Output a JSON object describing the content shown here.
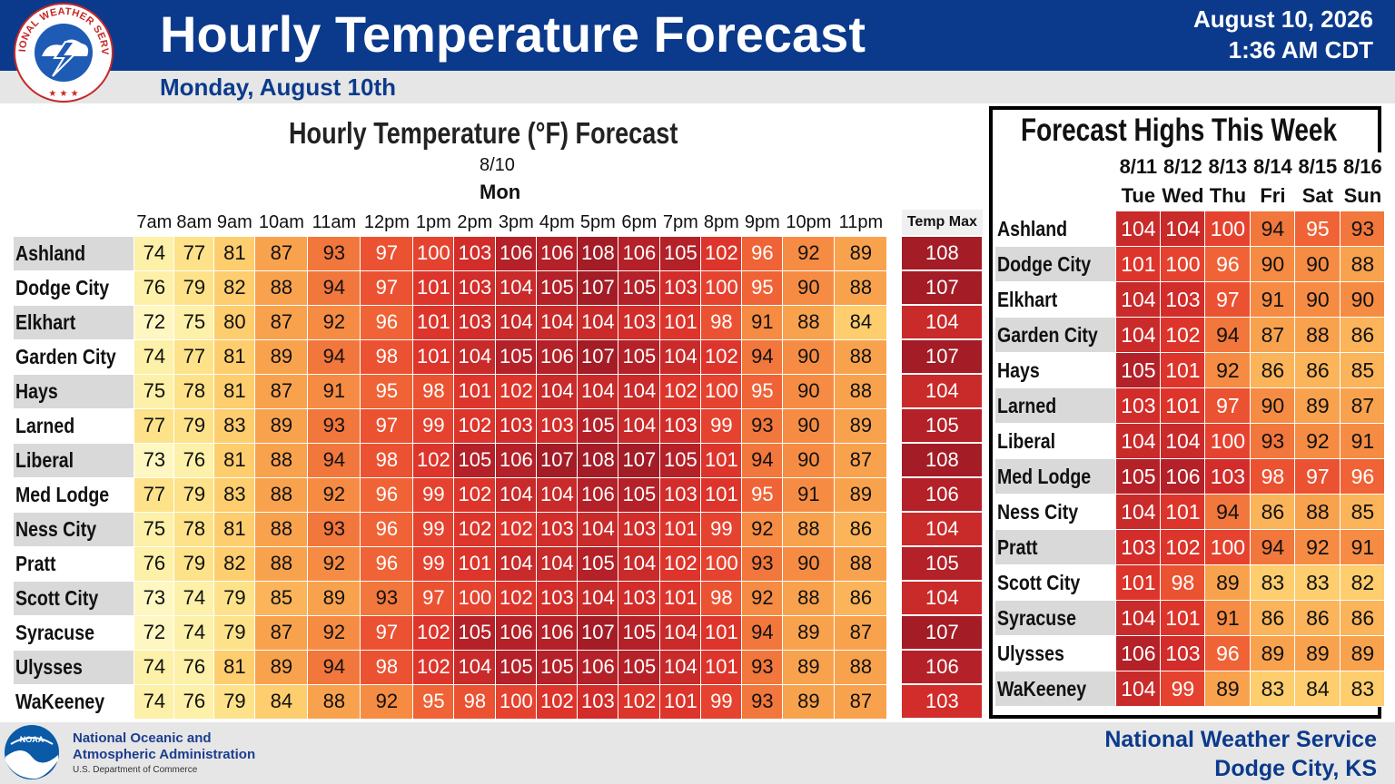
{
  "header": {
    "title": "Hourly Temperature Forecast",
    "subtitle": "Monday, August 10th",
    "date": "August 10, 2026",
    "time": "1:36 AM CDT",
    "logo_text": "NATIONAL WEATHER SERVICE"
  },
  "hourly": {
    "title": "Hourly Temperature (°F) Forecast",
    "date": "8/10",
    "day": "Mon",
    "hours": [
      "7am",
      "8am",
      "9am",
      "10am",
      "11am",
      "12pm",
      "1pm",
      "2pm",
      "3pm",
      "4pm",
      "5pm",
      "6pm",
      "7pm",
      "8pm",
      "9pm",
      "10pm",
      "11pm"
    ],
    "max_label": "Temp Max",
    "rows": [
      {
        "location": "Ashland",
        "temps": [
          74,
          77,
          81,
          87,
          93,
          97,
          100,
          103,
          106,
          106,
          108,
          106,
          105,
          102,
          96,
          92,
          89
        ],
        "max": 108
      },
      {
        "location": "Dodge City",
        "temps": [
          76,
          79,
          82,
          88,
          94,
          97,
          101,
          103,
          104,
          105,
          107,
          105,
          103,
          100,
          95,
          90,
          88
        ],
        "max": 107
      },
      {
        "location": "Elkhart",
        "temps": [
          72,
          75,
          80,
          87,
          92,
          96,
          101,
          103,
          104,
          104,
          104,
          103,
          101,
          98,
          91,
          88,
          84
        ],
        "max": 104
      },
      {
        "location": "Garden City",
        "temps": [
          74,
          77,
          81,
          89,
          94,
          98,
          101,
          104,
          105,
          106,
          107,
          105,
          104,
          102,
          94,
          90,
          88
        ],
        "max": 107
      },
      {
        "location": "Hays",
        "temps": [
          75,
          78,
          81,
          87,
          91,
          95,
          98,
          101,
          102,
          104,
          104,
          104,
          102,
          100,
          95,
          90,
          88
        ],
        "max": 104
      },
      {
        "location": "Larned",
        "temps": [
          77,
          79,
          83,
          89,
          93,
          97,
          99,
          102,
          103,
          103,
          105,
          104,
          103,
          99,
          93,
          90,
          89
        ],
        "max": 105
      },
      {
        "location": "Liberal",
        "temps": [
          73,
          76,
          81,
          88,
          94,
          98,
          102,
          105,
          106,
          107,
          108,
          107,
          105,
          101,
          94,
          90,
          87
        ],
        "max": 108
      },
      {
        "location": "Med Lodge",
        "temps": [
          77,
          79,
          83,
          88,
          92,
          96,
          99,
          102,
          104,
          104,
          106,
          105,
          103,
          101,
          95,
          91,
          89
        ],
        "max": 106
      },
      {
        "location": "Ness City",
        "temps": [
          75,
          78,
          81,
          88,
          93,
          96,
          99,
          102,
          102,
          103,
          104,
          103,
          101,
          99,
          92,
          88,
          86
        ],
        "max": 104
      },
      {
        "location": "Pratt",
        "temps": [
          76,
          79,
          82,
          88,
          92,
          96,
          99,
          101,
          104,
          104,
          105,
          104,
          102,
          100,
          93,
          90,
          88
        ],
        "max": 105
      },
      {
        "location": "Scott City",
        "temps": [
          73,
          74,
          79,
          85,
          89,
          93,
          97,
          100,
          102,
          103,
          104,
          103,
          101,
          98,
          92,
          88,
          86
        ],
        "max": 104
      },
      {
        "location": "Syracuse",
        "temps": [
          72,
          74,
          79,
          87,
          92,
          97,
          102,
          105,
          106,
          106,
          107,
          105,
          104,
          101,
          94,
          89,
          87
        ],
        "max": 107
      },
      {
        "location": "Ulysses",
        "temps": [
          74,
          76,
          81,
          89,
          94,
          98,
          102,
          104,
          105,
          105,
          106,
          105,
          104,
          101,
          93,
          89,
          88
        ],
        "max": 106
      },
      {
        "location": "WaKeeney",
        "temps": [
          74,
          76,
          79,
          84,
          88,
          92,
          95,
          98,
          100,
          102,
          103,
          102,
          101,
          99,
          93,
          89,
          87
        ],
        "max": 103
      }
    ]
  },
  "weekly": {
    "title": "Forecast Highs This Week",
    "dates": [
      "8/11",
      "8/12",
      "8/13",
      "8/14",
      "8/15",
      "8/16"
    ],
    "days": [
      "Tue",
      "Wed",
      "Thu",
      "Fri",
      "Sat",
      "Sun"
    ],
    "rows": [
      {
        "location": "Ashland",
        "highs": [
          104,
          104,
          100,
          94,
          95,
          93
        ]
      },
      {
        "location": "Dodge City",
        "highs": [
          101,
          100,
          96,
          90,
          90,
          88
        ]
      },
      {
        "location": "Elkhart",
        "highs": [
          104,
          103,
          97,
          91,
          90,
          90
        ]
      },
      {
        "location": "Garden City",
        "highs": [
          104,
          102,
          94,
          87,
          88,
          86
        ]
      },
      {
        "location": "Hays",
        "highs": [
          105,
          101,
          92,
          86,
          86,
          85
        ]
      },
      {
        "location": "Larned",
        "highs": [
          103,
          101,
          97,
          90,
          89,
          87
        ]
      },
      {
        "location": "Liberal",
        "highs": [
          104,
          104,
          100,
          93,
          92,
          91
        ]
      },
      {
        "location": "Med Lodge",
        "highs": [
          105,
          106,
          103,
          98,
          97,
          96
        ]
      },
      {
        "location": "Ness City",
        "highs": [
          104,
          101,
          94,
          86,
          88,
          85
        ]
      },
      {
        "location": "Pratt",
        "highs": [
          103,
          102,
          100,
          94,
          92,
          91
        ]
      },
      {
        "location": "Scott City",
        "highs": [
          101,
          98,
          89,
          83,
          83,
          82
        ]
      },
      {
        "location": "Syracuse",
        "highs": [
          104,
          101,
          91,
          86,
          86,
          86
        ]
      },
      {
        "location": "Ulysses",
        "highs": [
          106,
          103,
          96,
          89,
          89,
          89
        ]
      },
      {
        "location": "WaKeeney",
        "highs": [
          104,
          99,
          89,
          83,
          84,
          83
        ]
      }
    ]
  },
  "footer": {
    "noaa_line1": "National Oceanic and",
    "noaa_line2": "Atmospheric Administration",
    "noaa_dept": "U.S. Department of Commerce",
    "noaa_logo_text": "NOAA",
    "office_line1": "National Weather Service",
    "office_line2": "Dodge City, KS"
  },
  "colors": {
    "header_blue": "#0b3a8c",
    "band_bg": "#e6e6e6",
    "loc_shade": "#d9d9d9"
  }
}
